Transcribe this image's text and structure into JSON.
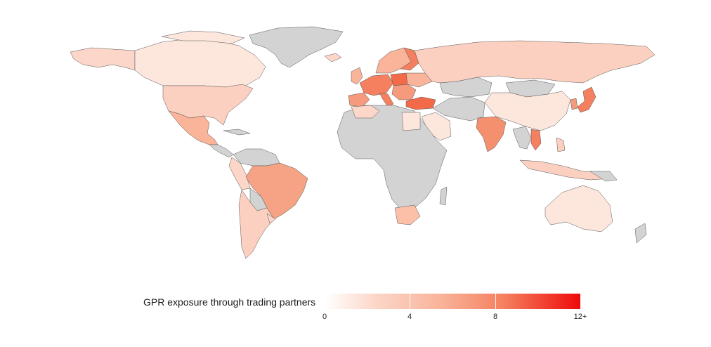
{
  "legend": {
    "title": "GPR exposure through trading partners",
    "ticks": [
      "0",
      "4",
      "8",
      "12+"
    ],
    "min_color": "#ffffff",
    "max_color": "#ee0a0a",
    "no_data_color": "#d3d3d3"
  },
  "colors": {
    "level_0": "#fde6dc",
    "level_1": "#fcd0c0",
    "level_2": "#f9b49a",
    "level_3": "#f59a7c",
    "level_4": "#f5805f",
    "level_5": "#f26a4a",
    "no_data": "#d3d3d3",
    "border": "#555555"
  }
}
